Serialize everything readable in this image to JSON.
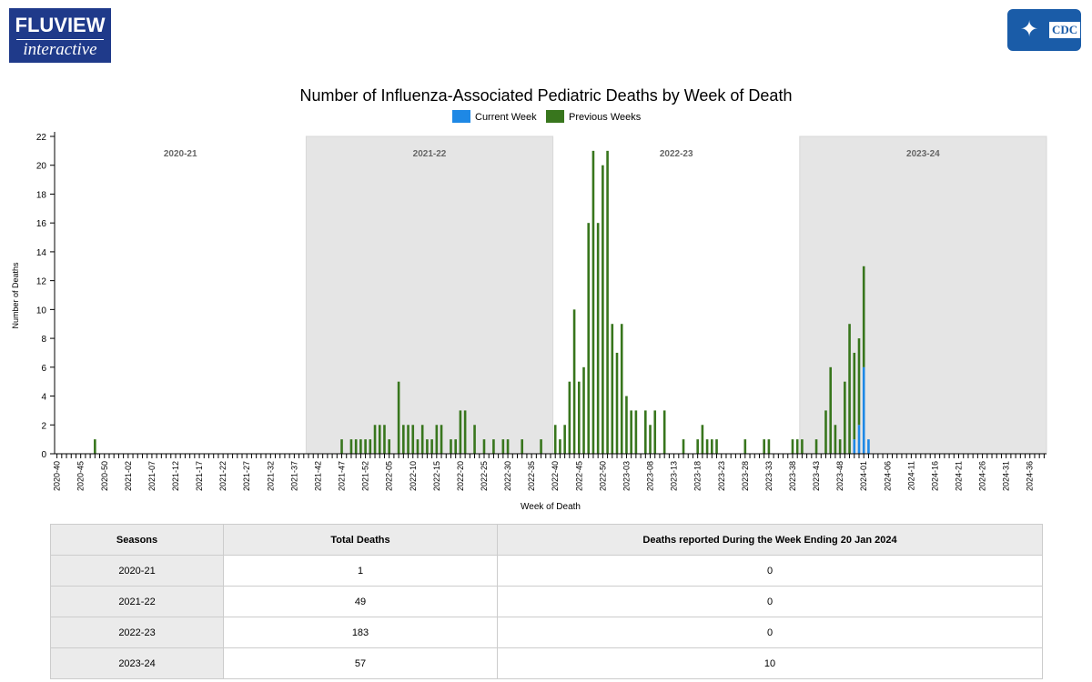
{
  "header": {
    "logo_main": "FLUVIEW",
    "logo_sub": "interactive",
    "cdc_logo": "CDC"
  },
  "colors": {
    "current": "#1e88e5",
    "previous": "#38761d",
    "band": "#e5e5e5"
  },
  "chart_data": {
    "type": "bar",
    "title": "Number of Influenza-Associated Pediatric Deaths by Week of Death",
    "xlabel": "Week of Death",
    "ylabel": "Number of Deaths",
    "ylim": [
      0,
      22
    ],
    "yticks": [
      0,
      2,
      4,
      6,
      8,
      10,
      12,
      14,
      16,
      18,
      20,
      22
    ],
    "legend": {
      "position": "top-center",
      "current": "Current Week",
      "previous": "Previous Weeks"
    },
    "seasons": [
      {
        "name": "2020-21",
        "shaded": false
      },
      {
        "name": "2021-22",
        "shaded": true
      },
      {
        "name": "2022-23",
        "shaded": false
      },
      {
        "name": "2023-24",
        "shaded": true
      }
    ],
    "x_tick_labels": [
      "2020-40",
      "2020-45",
      "2020-50",
      "2021-02",
      "2021-07",
      "2021-12",
      "2021-17",
      "2021-22",
      "2021-27",
      "2021-32",
      "2021-37",
      "2021-42",
      "2021-47",
      "2021-52",
      "2022-05",
      "2022-10",
      "2022-15",
      "2022-20",
      "2022-25",
      "2022-30",
      "2022-35",
      "2022-40",
      "2022-45",
      "2022-50",
      "2023-03",
      "2023-08",
      "2023-13",
      "2023-18",
      "2023-23",
      "2023-28",
      "2023-33",
      "2023-38",
      "2023-43",
      "2023-48",
      "2024-01",
      "2024-06",
      "2024-11",
      "2024-16",
      "2024-21",
      "2024-26",
      "2024-31",
      "2024-36"
    ],
    "previous_weeks": {
      "2020-48": 1,
      "2021-47": 1,
      "2021-49": 1,
      "2021-50": 1,
      "2021-51": 1,
      "2021-52": 1,
      "2022-01": 1,
      "2022-02": 2,
      "2022-03": 2,
      "2022-04": 2,
      "2022-05": 1,
      "2022-07": 5,
      "2022-08": 2,
      "2022-09": 2,
      "2022-10": 2,
      "2022-11": 1,
      "2022-12": 2,
      "2022-13": 1,
      "2022-14": 1,
      "2022-15": 2,
      "2022-16": 2,
      "2022-18": 1,
      "2022-19": 1,
      "2022-20": 3,
      "2022-21": 3,
      "2022-23": 2,
      "2022-25": 1,
      "2022-27": 1,
      "2022-29": 1,
      "2022-30": 1,
      "2022-33": 1,
      "2022-37": 1,
      "2022-40": 2,
      "2022-41": 1,
      "2022-42": 2,
      "2022-43": 5,
      "2022-44": 10,
      "2022-45": 5,
      "2022-46": 6,
      "2022-47": 16,
      "2022-48": 21,
      "2022-49": 16,
      "2022-50": 20,
      "2022-51": 21,
      "2022-52": 9,
      "2023-01": 7,
      "2023-02": 9,
      "2023-03": 4,
      "2023-04": 3,
      "2023-05": 3,
      "2023-07": 3,
      "2023-08": 2,
      "2023-09": 3,
      "2023-11": 3,
      "2023-15": 1,
      "2023-18": 1,
      "2023-19": 2,
      "2023-20": 1,
      "2023-21": 1,
      "2023-22": 1,
      "2023-28": 1,
      "2023-32": 1,
      "2023-33": 1,
      "2023-38": 1,
      "2023-39": 1,
      "2023-40": 1,
      "2023-43": 1,
      "2023-45": 3,
      "2023-46": 6,
      "2023-47": 2,
      "2023-48": 1,
      "2023-49": 5,
      "2023-50": 9,
      "2023-51": 6,
      "2023-52": 6,
      "2024-01": 7
    },
    "current_week": {
      "2023-51": 1,
      "2023-52": 2,
      "2024-01": 6,
      "2024-02": 1
    }
  },
  "table": {
    "headers": [
      "Seasons",
      "Total Deaths",
      "Deaths reported During the Week Ending 20 Jan 2024"
    ],
    "rows": [
      [
        "2020-21",
        "1",
        "0"
      ],
      [
        "2021-22",
        "49",
        "0"
      ],
      [
        "2022-23",
        "183",
        "0"
      ],
      [
        "2023-24",
        "57",
        "10"
      ]
    ]
  }
}
